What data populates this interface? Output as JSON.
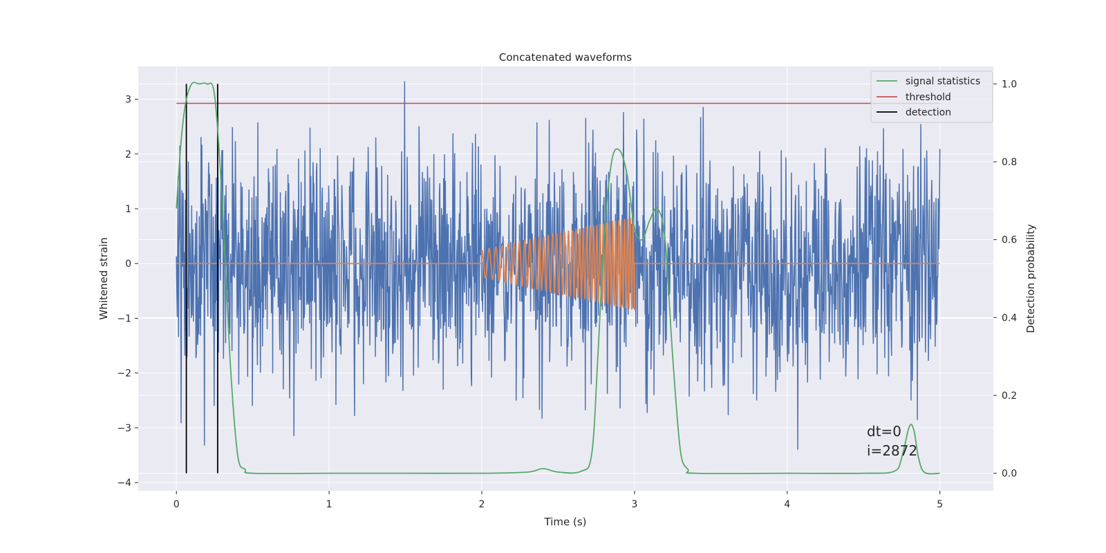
{
  "chart_data": {
    "type": "line",
    "title": "Concatenated waveforms",
    "xlabel": "Time (s)",
    "ylabel": "Whitened strain",
    "ylabel_right": "Detection probability",
    "xlim": [
      -0.25,
      5.35
    ],
    "ylim": [
      -4.15,
      3.6
    ],
    "ylim_right": [
      -0.045,
      1.045
    ],
    "xticks": [
      0,
      1,
      2,
      3,
      4,
      5
    ],
    "yticks": [
      -4,
      -3,
      -2,
      -1,
      0,
      1,
      2,
      3
    ],
    "yticks_right": [
      0.0,
      0.2,
      0.4,
      0.6,
      0.8,
      1.0
    ],
    "grid": true,
    "legend_position": "top-right",
    "legend": [
      {
        "name": "signal statistics",
        "color": "#55a868"
      },
      {
        "name": "threshold",
        "color": "#c44e52"
      },
      {
        "name": "detection",
        "color": "#000000"
      }
    ],
    "noise": {
      "name": "",
      "color": "#4c72b0",
      "x_range": [
        0,
        5
      ],
      "amplitude": 3.4
    },
    "waveform": {
      "name": "",
      "color": "#dd8452",
      "x_range": [
        2,
        3
      ],
      "start_amplitude": 0.25,
      "end_amplitude": 0.85,
      "frequency_start_hz": 20,
      "frequency_end_hz": 55
    },
    "signal_statistics": {
      "name": "signal statistics",
      "color": "#55a868",
      "x": [
        0,
        0.03,
        0.06,
        0.1,
        0.15,
        0.2,
        0.25,
        0.3,
        0.35,
        0.4,
        0.45,
        0.5,
        1.0,
        1.5,
        2.0,
        2.3,
        2.4,
        2.5,
        2.65,
        2.72,
        2.76,
        2.8,
        2.85,
        2.9,
        2.95,
        3.0,
        3.05,
        3.1,
        3.15,
        3.2,
        3.25,
        3.3,
        3.35,
        3.4,
        4.0,
        4.5,
        4.7,
        4.75,
        4.8,
        4.83,
        4.86,
        4.9,
        5.0
      ],
      "y": [
        0.68,
        0.85,
        0.95,
        1.0,
        1.0,
        1.0,
        0.97,
        0.7,
        0.3,
        0.05,
        0.01,
        0.0,
        0.0,
        0.0,
        0.0,
        0.003,
        0.012,
        0.003,
        0.005,
        0.05,
        0.3,
        0.6,
        0.8,
        0.83,
        0.77,
        0.63,
        0.6,
        0.65,
        0.68,
        0.6,
        0.3,
        0.06,
        0.01,
        0.0,
        0.0,
        0.0,
        0.005,
        0.04,
        0.12,
        0.11,
        0.04,
        0.002,
        0.0
      ]
    },
    "threshold": {
      "name": "threshold",
      "color": "#c44e52",
      "x_range": [
        0,
        5
      ],
      "value": 0.95
    },
    "detections": {
      "name": "detection",
      "color": "#000000",
      "x": [
        0.065,
        0.27
      ],
      "y_range": [
        0,
        1
      ]
    },
    "annotations": [
      "dt=0",
      "i=2872"
    ]
  }
}
